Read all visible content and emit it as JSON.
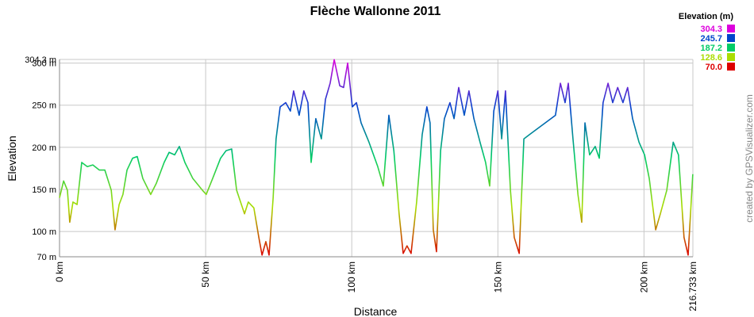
{
  "chart_data": {
    "type": "line",
    "title": "Flèche Wallonne 2011",
    "x_label": "Distance",
    "y_label": "Elevation",
    "credit": "created by GPSVisualizer.com",
    "xlim": [
      0,
      216.733
    ],
    "ylim": [
      70,
      304.3
    ],
    "xticks": [
      {
        "value": 0,
        "label": "0 km"
      },
      {
        "value": 50,
        "label": "50 km"
      },
      {
        "value": 100,
        "label": "100 km"
      },
      {
        "value": 150,
        "label": "150 km"
      },
      {
        "value": 200,
        "label": "200 km"
      },
      {
        "value": 216.733,
        "label": "216.733 km"
      }
    ],
    "yticks": [
      {
        "value": 304.3,
        "label": "304.3 m"
      },
      {
        "value": 300,
        "label": "300 m"
      },
      {
        "value": 250,
        "label": "250 m"
      },
      {
        "value": 200,
        "label": "200 m"
      },
      {
        "value": 150,
        "label": "150 m"
      },
      {
        "value": 100,
        "label": "100 m"
      },
      {
        "value": 70,
        "label": "70 m"
      }
    ],
    "grid": true,
    "legend": {
      "title": "Elevation (m)",
      "values": [
        304.3,
        245.7,
        187.2,
        128.6,
        70
      ],
      "value_labels": [
        "304.3",
        "245.7",
        "187.2",
        "128.6",
        "70.0"
      ],
      "colors": [
        "#dd00dd",
        "#0044cc",
        "#00cc66",
        "#aadd00",
        "#dd0000"
      ]
    },
    "x": [
      0,
      1.4,
      2.7,
      3.5,
      4.6,
      6,
      7.6,
      9.5,
      11.4,
      13.6,
      15.5,
      17.7,
      19,
      20.4,
      21.7,
      23.1,
      25,
      26.6,
      28.5,
      31.2,
      33.1,
      35.8,
      37.5,
      39.4,
      41,
      42.9,
      45.6,
      48.9,
      50.2,
      52.4,
      55.1,
      57,
      58.9,
      60.6,
      63.3,
      64.6,
      66.5,
      68.2,
      69.3,
      70.6,
      71.7,
      73.1,
      74.1,
      75.5,
      77.4,
      79,
      80.1,
      82,
      83.6,
      85,
      86.1,
      87.7,
      89.6,
      91,
      92.6,
      94,
      95.9,
      97.2,
      98.6,
      100.2,
      101.6,
      103.2,
      105.9,
      108.9,
      110.8,
      112.7,
      114.4,
      116.2,
      117.6,
      118.9,
      120.3,
      122.2,
      124.1,
      125.7,
      126.8,
      127.9,
      129,
      130.4,
      131.7,
      133.6,
      135,
      136.6,
      138.5,
      140.1,
      141.8,
      143.9,
      145.8,
      147.2,
      148.6,
      150,
      151.3,
      152.6,
      154.3,
      155.6,
      157.3,
      158.9,
      160.8,
      169.7,
      171.4,
      173,
      174.1,
      175.7,
      177.4,
      178.7,
      179.8,
      181.4,
      183.3,
      184.7,
      186,
      187.7,
      189.3,
      191,
      192.8,
      194.4,
      196.1,
      198.3,
      200.2,
      201.8,
      204,
      205.6,
      207.8,
      210,
      211.8,
      213.7,
      215.1,
      216.7
    ],
    "series": [
      {
        "name": "Elevation",
        "values": [
          140,
          160,
          149,
          111,
          135,
          132,
          182,
          177,
          179,
          173,
          173,
          149,
          102,
          132,
          144,
          173,
          187,
          189,
          163,
          144,
          157,
          182,
          194,
          191,
          201,
          182,
          163,
          149,
          144,
          163,
          187,
          196,
          198,
          149,
          121,
          135,
          128,
          93,
          72,
          88,
          72,
          140,
          210,
          248,
          253,
          243,
          267,
          238,
          267,
          253,
          182,
          234,
          210,
          257,
          276,
          304,
          273,
          271,
          300,
          248,
          253,
          229,
          206,
          177,
          154,
          238,
          196,
          121,
          74,
          83,
          74,
          135,
          215,
          248,
          229,
          102,
          76,
          196,
          234,
          253,
          234,
          271,
          238,
          267,
          234,
          206,
          182,
          154,
          243,
          267,
          210,
          267,
          149,
          93,
          74,
          210,
          215,
          238,
          276,
          253,
          276,
          210,
          144,
          111,
          229,
          191,
          201,
          187,
          253,
          276,
          253,
          271,
          253,
          271,
          234,
          206,
          191,
          163,
          102,
          121,
          149,
          206,
          191,
          93,
          72,
          168
        ]
      }
    ]
  }
}
